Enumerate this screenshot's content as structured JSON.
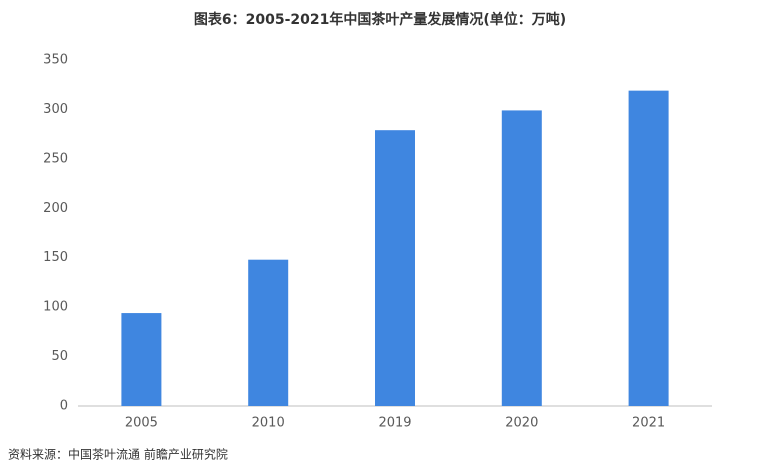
{
  "chart_data": {
    "type": "bar",
    "title": "图表6：2005-2021年中国茶叶产量发展情况(单位：万吨)",
    "categories": [
      "2005",
      "2010",
      "2019",
      "2020",
      "2021"
    ],
    "values": [
      94,
      148,
      279,
      299,
      319
    ],
    "color": "#3f86e0",
    "ylim": [
      0,
      350
    ],
    "yticks": [
      0,
      50,
      100,
      150,
      200,
      250,
      300,
      350
    ],
    "grid": false,
    "source": "资料来源：中国茶叶流通 前瞻产业研究院"
  }
}
